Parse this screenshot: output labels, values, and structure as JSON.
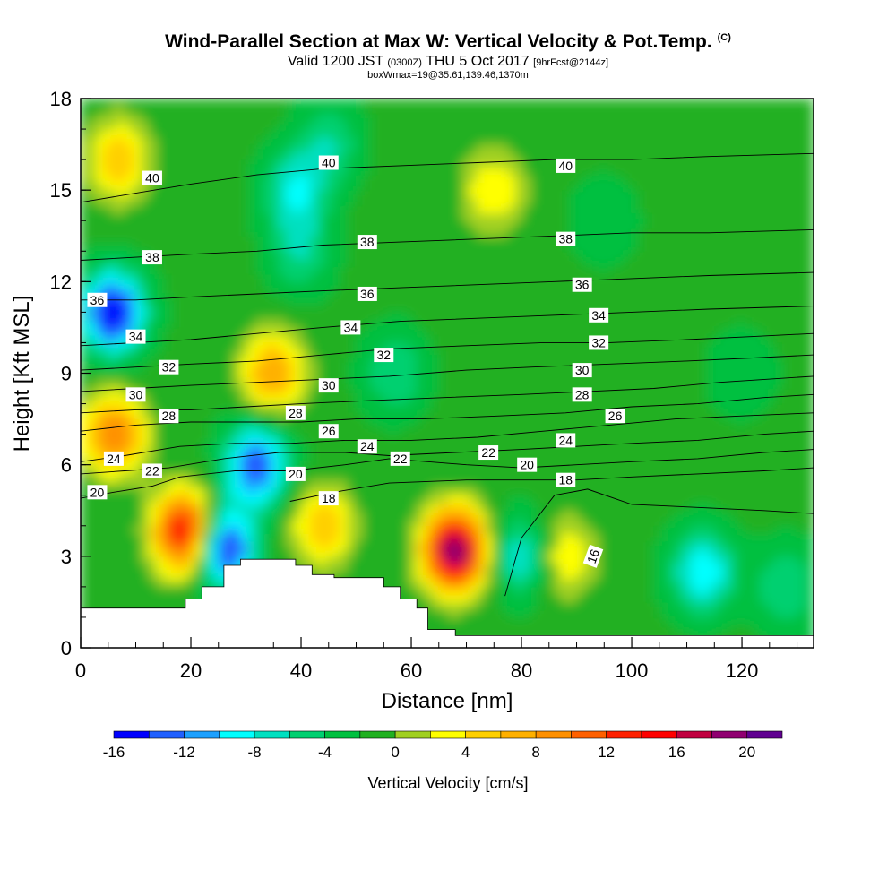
{
  "header": {
    "title": "Wind-Parallel Section at Max W: Vertical Velocity & Pot.Temp.",
    "title_mark": "(C)",
    "valid_prefix": "Valid 1200 JST",
    "valid_utc": "(0300Z)",
    "valid_date": "THU 5 Oct 2017",
    "forecast": "[9hrFcst@2144z]",
    "box_info": "boxWmax=19@35.61,139.46,1370m"
  },
  "chart_data": {
    "type": "heatmap",
    "title": "Wind-Parallel Section at Max W: Vertical Velocity & Pot.Temp.",
    "xlabel": "Distance [nm]",
    "ylabel": "Height [Kft MSL]",
    "xlim": [
      0,
      133
    ],
    "ylim": [
      0,
      18
    ],
    "xticks": [
      0,
      20,
      40,
      60,
      80,
      100,
      120
    ],
    "yticks": [
      0,
      3,
      6,
      9,
      12,
      15,
      18
    ],
    "grid": false,
    "colorbar": {
      "label": "Vertical Velocity [cm/s]",
      "levels": [
        -16,
        -14,
        -12,
        -10,
        -8,
        -6,
        -4,
        -2,
        0,
        2,
        4,
        6,
        8,
        10,
        12,
        14,
        16,
        18,
        20,
        22
      ],
      "tick_labels": [
        "-16",
        "-12",
        "-8",
        "-4",
        "0",
        "4",
        "8",
        "12",
        "16",
        "20"
      ],
      "colors": [
        "#0000ff",
        "#2060ff",
        "#1ca0ff",
        "#00ffff",
        "#00e0c0",
        "#00d070",
        "#00c040",
        "#20b020",
        "#a0d020",
        "#ffff00",
        "#ffd000",
        "#ffb000",
        "#ff9000",
        "#ff6000",
        "#ff2000",
        "#ff0000",
        "#c00040",
        "#900070",
        "#600090"
      ]
    },
    "velocity_features": [
      {
        "x": 6,
        "y": 11,
        "value": -16
      },
      {
        "x": 7,
        "y": 16,
        "value": 6
      },
      {
        "x": 6,
        "y": 7,
        "value": 10
      },
      {
        "x": 19,
        "y": 3.8,
        "value": 16
      },
      {
        "x": 26,
        "y": 3.3,
        "value": -16
      },
      {
        "x": 32,
        "y": 6,
        "value": -14
      },
      {
        "x": 35,
        "y": 9,
        "value": 8
      },
      {
        "x": 39,
        "y": 15,
        "value": -8
      },
      {
        "x": 44,
        "y": 4,
        "value": 6
      },
      {
        "x": 57,
        "y": 9,
        "value": -6
      },
      {
        "x": 68,
        "y": 3.2,
        "value": 20
      },
      {
        "x": 75,
        "y": 15,
        "value": 4
      },
      {
        "x": 80,
        "y": 3,
        "value": -8
      },
      {
        "x": 88,
        "y": 3,
        "value": 4
      },
      {
        "x": 95,
        "y": 14,
        "value": -4
      },
      {
        "x": 113,
        "y": 2.5,
        "value": -10
      },
      {
        "x": 128,
        "y": 2,
        "value": -6
      },
      {
        "x": 40,
        "y": 13,
        "value": -6
      },
      {
        "x": 45,
        "y": 16.5,
        "value": -6
      },
      {
        "x": 120,
        "y": 9,
        "value": -4
      }
    ],
    "isentropes": [
      {
        "theta": 16,
        "label": "16",
        "points": [
          [
            77,
            1.7
          ],
          [
            80,
            3.6
          ],
          [
            86,
            5
          ],
          [
            92,
            5.2
          ],
          [
            100,
            4.7
          ],
          [
            112,
            4.6
          ],
          [
            124,
            4.5
          ],
          [
            133,
            4.4
          ]
        ]
      },
      {
        "theta": 18,
        "label": "18",
        "points": [
          [
            38,
            4.8
          ],
          [
            46,
            5.1
          ],
          [
            56,
            5.4
          ],
          [
            70,
            5.5
          ],
          [
            82,
            5.5
          ],
          [
            90,
            5.5
          ],
          [
            100,
            5.6
          ],
          [
            112,
            5.7
          ],
          [
            124,
            5.8
          ],
          [
            133,
            5.9
          ]
        ]
      },
      {
        "theta": 20,
        "label": "20",
        "points": [
          [
            0,
            4.9
          ],
          [
            6,
            5.1
          ],
          [
            13,
            5.3
          ],
          [
            18,
            5.6
          ],
          [
            28,
            5.8
          ],
          [
            38,
            5.8
          ],
          [
            48,
            6.0
          ],
          [
            56,
            6.2
          ],
          [
            70,
            6.0
          ],
          [
            80,
            5.9
          ],
          [
            90,
            6.0
          ],
          [
            100,
            6.1
          ],
          [
            112,
            6.2
          ],
          [
            124,
            6.4
          ],
          [
            133,
            6.5
          ]
        ]
      },
      {
        "theta": 22,
        "label": "22",
        "points": [
          [
            0,
            5.7
          ],
          [
            8,
            5.8
          ],
          [
            16,
            5.9
          ],
          [
            26,
            6.2
          ],
          [
            36,
            6.4
          ],
          [
            48,
            6.4
          ],
          [
            56,
            6.3
          ],
          [
            68,
            6.4
          ],
          [
            80,
            6.5
          ],
          [
            90,
            6.6
          ],
          [
            100,
            6.7
          ],
          [
            112,
            6.8
          ],
          [
            124,
            7.0
          ],
          [
            133,
            7.1
          ]
        ]
      },
      {
        "theta": 24,
        "label": "24",
        "points": [
          [
            0,
            6.1
          ],
          [
            8,
            6.3
          ],
          [
            18,
            6.6
          ],
          [
            28,
            6.7
          ],
          [
            38,
            6.7
          ],
          [
            48,
            6.8
          ],
          [
            60,
            6.8
          ],
          [
            72,
            6.9
          ],
          [
            84,
            7.1
          ],
          [
            96,
            7.3
          ],
          [
            108,
            7.5
          ],
          [
            120,
            7.6
          ],
          [
            133,
            7.7
          ]
        ]
      },
      {
        "theta": 26,
        "label": "26",
        "points": [
          [
            0,
            7.1
          ],
          [
            10,
            7.3
          ],
          [
            20,
            7.4
          ],
          [
            30,
            7.4
          ],
          [
            40,
            7.4
          ],
          [
            50,
            7.5
          ],
          [
            62,
            7.5
          ],
          [
            76,
            7.6
          ],
          [
            88,
            7.7
          ],
          [
            100,
            7.9
          ],
          [
            112,
            8.0
          ],
          [
            124,
            8.2
          ],
          [
            133,
            8.3
          ]
        ]
      },
      {
        "theta": 28,
        "label": "28",
        "points": [
          [
            0,
            7.7
          ],
          [
            10,
            7.8
          ],
          [
            20,
            7.8
          ],
          [
            30,
            7.9
          ],
          [
            40,
            8.0
          ],
          [
            52,
            8.1
          ],
          [
            66,
            8.2
          ],
          [
            80,
            8.3
          ],
          [
            92,
            8.4
          ],
          [
            104,
            8.5
          ],
          [
            116,
            8.7
          ],
          [
            133,
            8.9
          ]
        ]
      },
      {
        "theta": 30,
        "label": "30",
        "points": [
          [
            0,
            8.4
          ],
          [
            10,
            8.5
          ],
          [
            20,
            8.6
          ],
          [
            32,
            8.7
          ],
          [
            44,
            8.8
          ],
          [
            56,
            8.9
          ],
          [
            70,
            9.1
          ],
          [
            82,
            9.2
          ],
          [
            96,
            9.3
          ],
          [
            110,
            9.4
          ],
          [
            122,
            9.5
          ],
          [
            133,
            9.6
          ]
        ]
      },
      {
        "theta": 32,
        "label": "32",
        "points": [
          [
            0,
            9.1
          ],
          [
            10,
            9.2
          ],
          [
            20,
            9.3
          ],
          [
            32,
            9.4
          ],
          [
            44,
            9.6
          ],
          [
            56,
            9.8
          ],
          [
            70,
            9.9
          ],
          [
            84,
            10.0
          ],
          [
            96,
            10.0
          ],
          [
            110,
            10.1
          ],
          [
            122,
            10.2
          ],
          [
            133,
            10.3
          ]
        ]
      },
      {
        "theta": 34,
        "label": "34",
        "points": [
          [
            0,
            9.9
          ],
          [
            10,
            10.0
          ],
          [
            20,
            10.1
          ],
          [
            32,
            10.3
          ],
          [
            44,
            10.5
          ],
          [
            58,
            10.7
          ],
          [
            72,
            10.8
          ],
          [
            86,
            10.9
          ],
          [
            100,
            11.0
          ],
          [
            114,
            11.1
          ],
          [
            133,
            11.2
          ]
        ]
      },
      {
        "theta": 36,
        "label": "36",
        "points": [
          [
            0,
            11.4
          ],
          [
            10,
            11.4
          ],
          [
            20,
            11.5
          ],
          [
            32,
            11.6
          ],
          [
            44,
            11.7
          ],
          [
            58,
            11.8
          ],
          [
            72,
            11.9
          ],
          [
            86,
            12.0
          ],
          [
            100,
            12.1
          ],
          [
            114,
            12.2
          ],
          [
            133,
            12.3
          ]
        ]
      },
      {
        "theta": 38,
        "label": "38",
        "points": [
          [
            0,
            12.7
          ],
          [
            10,
            12.8
          ],
          [
            20,
            12.9
          ],
          [
            32,
            13.0
          ],
          [
            44,
            13.2
          ],
          [
            58,
            13.3
          ],
          [
            72,
            13.4
          ],
          [
            86,
            13.5
          ],
          [
            100,
            13.6
          ],
          [
            114,
            13.6
          ],
          [
            133,
            13.7
          ]
        ]
      },
      {
        "theta": 40,
        "label": "40",
        "points": [
          [
            0,
            14.6
          ],
          [
            10,
            14.9
          ],
          [
            20,
            15.2
          ],
          [
            32,
            15.5
          ],
          [
            44,
            15.7
          ],
          [
            58,
            15.8
          ],
          [
            72,
            15.9
          ],
          [
            86,
            16.0
          ],
          [
            100,
            16.0
          ],
          [
            114,
            16.1
          ],
          [
            133,
            16.2
          ]
        ]
      }
    ],
    "contour_labels": [
      {
        "text": "40",
        "x": 13,
        "y": 15.4
      },
      {
        "text": "40",
        "x": 45,
        "y": 15.9
      },
      {
        "text": "40",
        "x": 88,
        "y": 15.8
      },
      {
        "text": "38",
        "x": 13,
        "y": 12.8
      },
      {
        "text": "38",
        "x": 52,
        "y": 13.3
      },
      {
        "text": "38",
        "x": 88,
        "y": 13.4
      },
      {
        "text": "36",
        "x": 3,
        "y": 11.4
      },
      {
        "text": "36",
        "x": 52,
        "y": 11.6
      },
      {
        "text": "36",
        "x": 91,
        "y": 11.9
      },
      {
        "text": "34",
        "x": 10,
        "y": 10.2
      },
      {
        "text": "34",
        "x": 49,
        "y": 10.5
      },
      {
        "text": "34",
        "x": 94,
        "y": 10.9
      },
      {
        "text": "32",
        "x": 16,
        "y": 9.2
      },
      {
        "text": "32",
        "x": 55,
        "y": 9.6
      },
      {
        "text": "32",
        "x": 94,
        "y": 10.0
      },
      {
        "text": "30",
        "x": 10,
        "y": 8.3
      },
      {
        "text": "30",
        "x": 45,
        "y": 8.6
      },
      {
        "text": "30",
        "x": 91,
        "y": 9.1
      },
      {
        "text": "28",
        "x": 16,
        "y": 7.6
      },
      {
        "text": "28",
        "x": 39,
        "y": 7.7
      },
      {
        "text": "28",
        "x": 91,
        "y": 8.3
      },
      {
        "text": "26",
        "x": 45,
        "y": 7.1
      },
      {
        "text": "26",
        "x": 97,
        "y": 7.6
      },
      {
        "text": "24",
        "x": 6,
        "y": 6.2
      },
      {
        "text": "24",
        "x": 52,
        "y": 6.6
      },
      {
        "text": "24",
        "x": 88,
        "y": 6.8
      },
      {
        "text": "22",
        "x": 13,
        "y": 5.8
      },
      {
        "text": "22",
        "x": 58,
        "y": 6.2
      },
      {
        "text": "22",
        "x": 74,
        "y": 6.4
      },
      {
        "text": "20",
        "x": 3,
        "y": 5.1
      },
      {
        "text": "20",
        "x": 39,
        "y": 5.7
      },
      {
        "text": "20",
        "x": 81,
        "y": 6.0
      },
      {
        "text": "18",
        "x": 45,
        "y": 4.9
      },
      {
        "text": "18",
        "x": 88,
        "y": 5.5
      },
      {
        "text": "16",
        "x": 93,
        "y": 3.0,
        "rotate": -70
      }
    ],
    "terrain": [
      [
        0,
        1.3
      ],
      [
        19,
        1.3
      ],
      [
        19,
        1.6
      ],
      [
        22,
        1.6
      ],
      [
        22,
        2.0
      ],
      [
        26,
        2.0
      ],
      [
        26,
        2.7
      ],
      [
        29,
        2.7
      ],
      [
        29,
        2.9
      ],
      [
        39,
        2.9
      ],
      [
        39,
        2.7
      ],
      [
        42,
        2.7
      ],
      [
        42,
        2.4
      ],
      [
        46,
        2.4
      ],
      [
        46,
        2.3
      ],
      [
        55,
        2.3
      ],
      [
        55,
        2.0
      ],
      [
        58,
        2.0
      ],
      [
        58,
        1.6
      ],
      [
        61,
        1.6
      ],
      [
        61,
        1.3
      ],
      [
        63,
        1.3
      ],
      [
        63,
        0.6
      ],
      [
        68,
        0.6
      ],
      [
        68,
        0.4
      ],
      [
        133,
        0.4
      ]
    ]
  }
}
